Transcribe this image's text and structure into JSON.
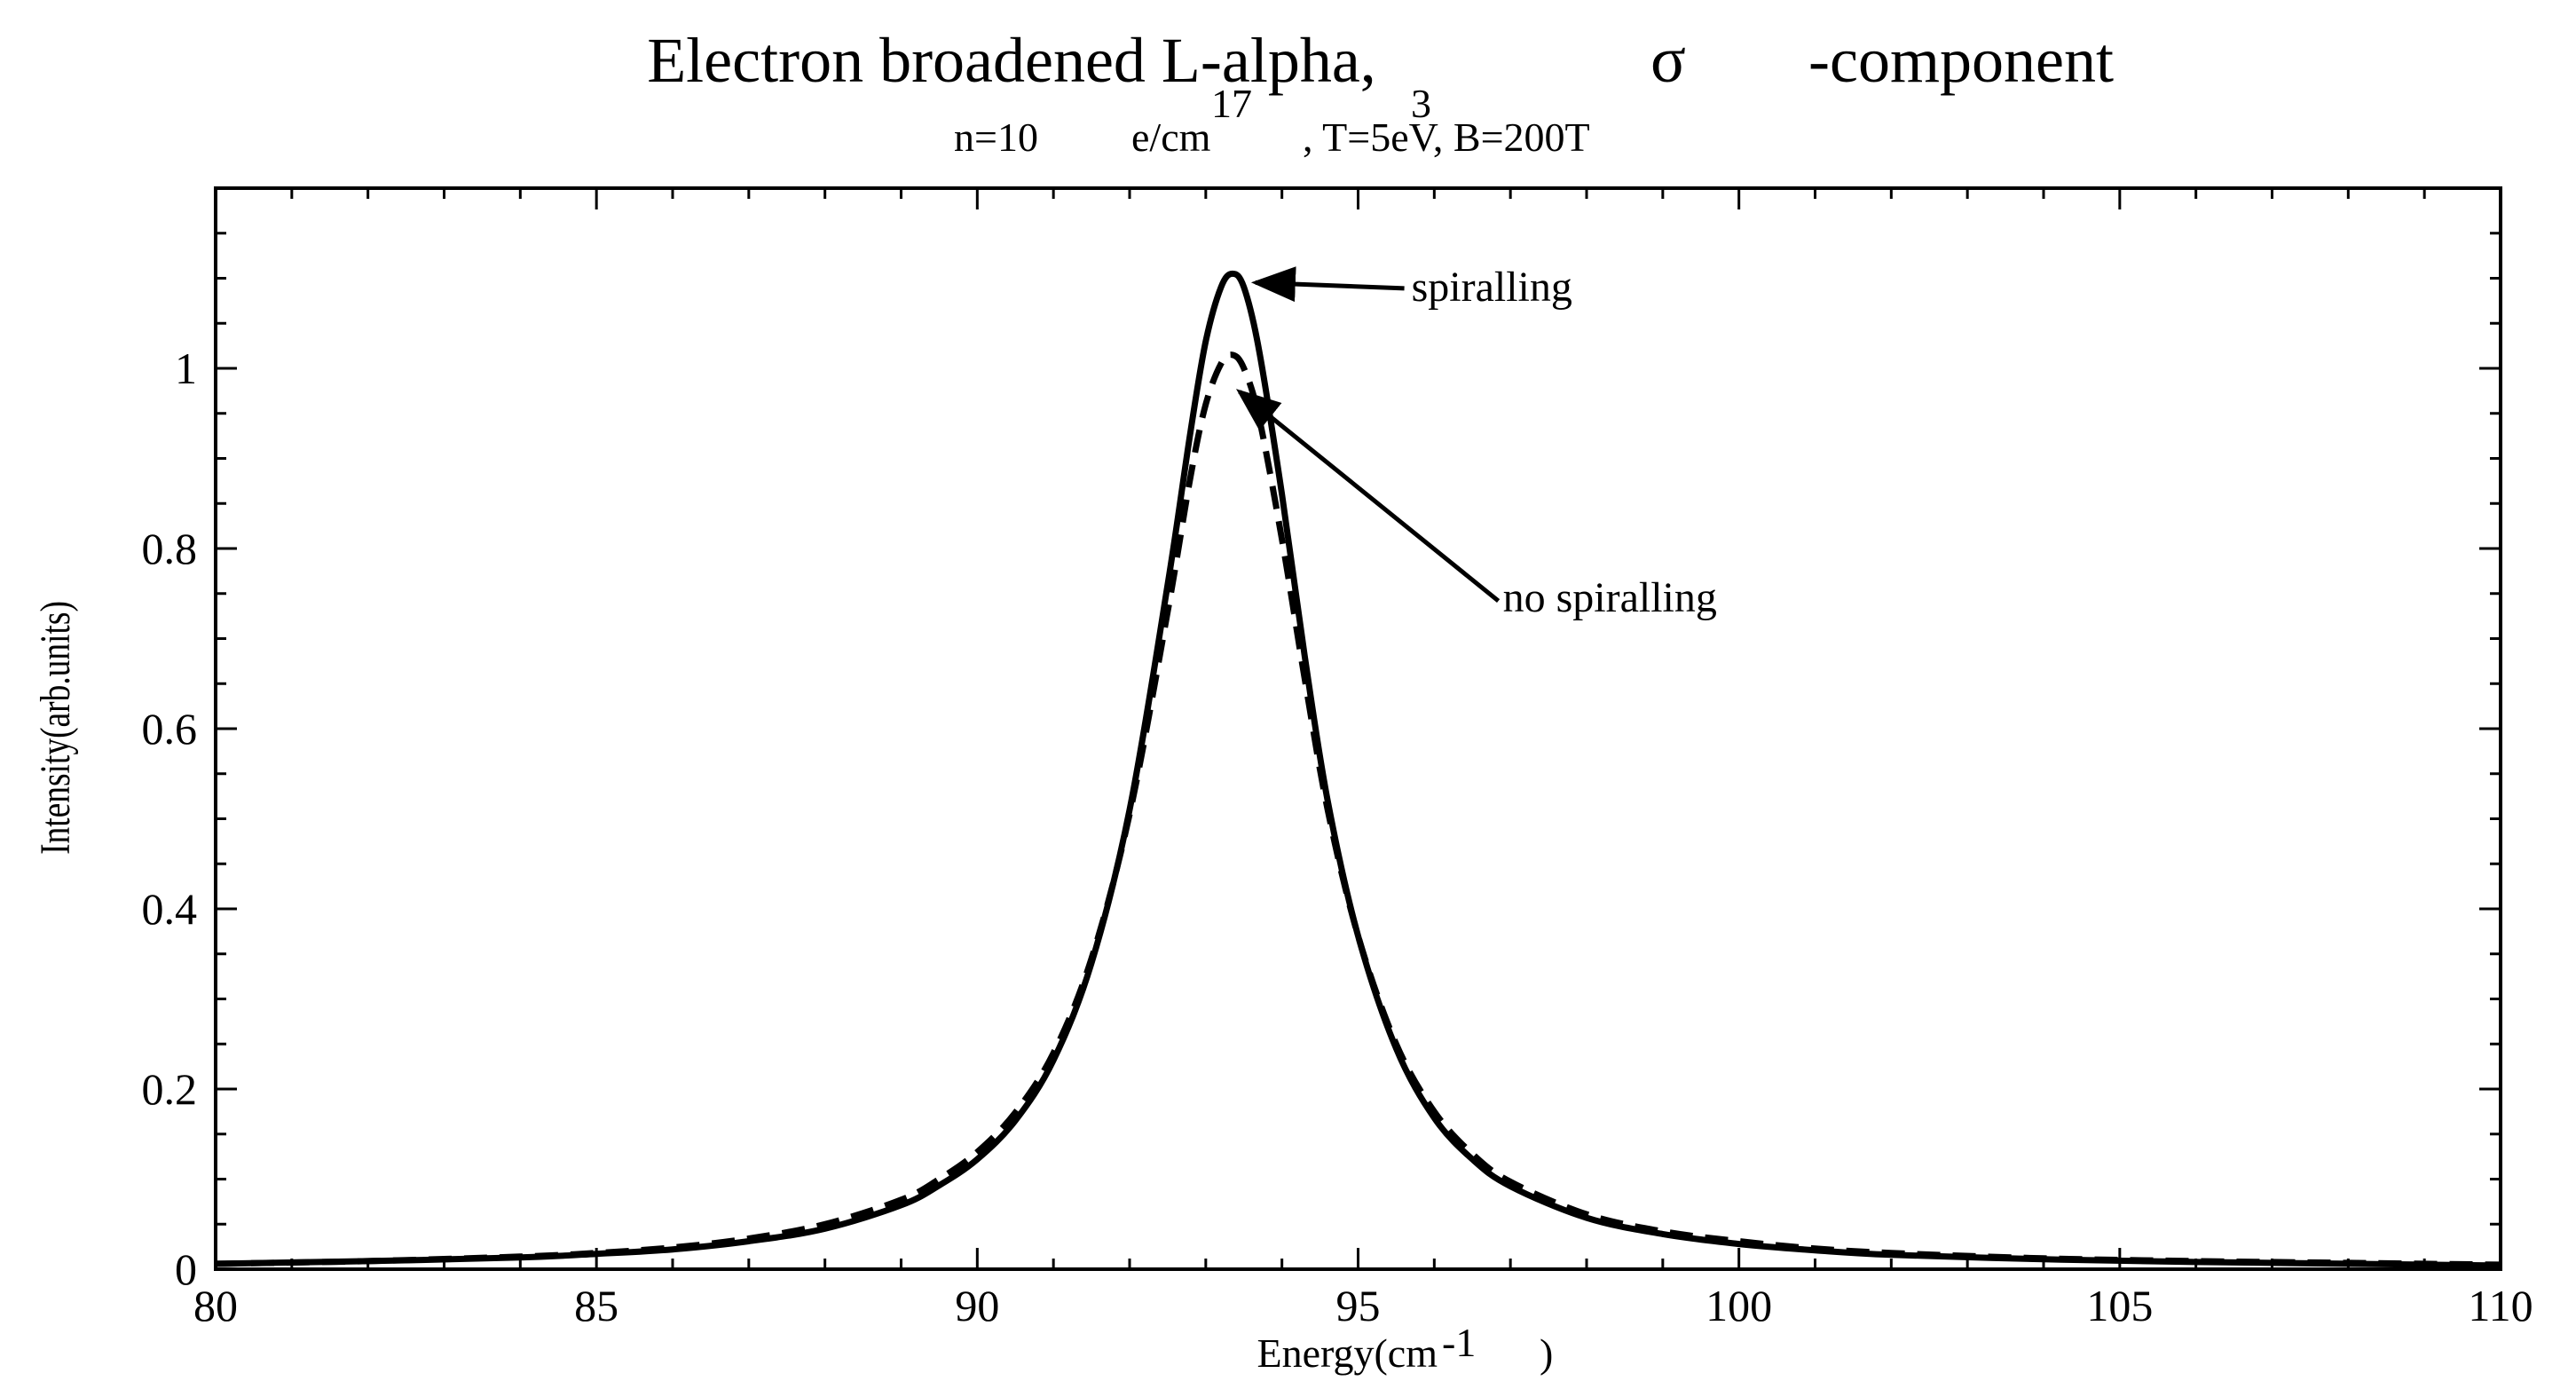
{
  "chart_data": {
    "type": "line",
    "title": "Electron broadened L-alpha,",
    "title_symbol": "σ",
    "title_suffix": "-component",
    "subtitle": {
      "prefix": "n=10",
      "exponent_n": "17",
      "unit": "e/cm",
      "exponent_unit": "3",
      "suffix": ", T=5eV, B=200T"
    },
    "xlabel": {
      "text": "Energy(cm",
      "sup": "-1",
      "close": ")"
    },
    "ylabel": "Intensity(arb.units)",
    "xlim": [
      80,
      110
    ],
    "ylim": [
      0,
      1.2
    ],
    "x_ticks": [
      80,
      85,
      90,
      95,
      100,
      105,
      110
    ],
    "x_tick_labels": [
      "80",
      "85",
      "90",
      "95",
      "100",
      "105",
      "110"
    ],
    "y_ticks": [
      0,
      0.2,
      0.4,
      0.6,
      0.8,
      1.0
    ],
    "y_tick_labels": [
      "0",
      "0.2",
      "0.4",
      "0.6",
      "0.8",
      "1"
    ],
    "x_minor_step": 1,
    "y_minor_step": 0.05,
    "series": [
      {
        "name": "spiralling",
        "style": "solid",
        "color": "#000000",
        "peak_center": 93.35,
        "points": [
          [
            80,
            0.006
          ],
          [
            82,
            0.009
          ],
          [
            84,
            0.013
          ],
          [
            85,
            0.017
          ],
          [
            86,
            0.022
          ],
          [
            87,
            0.031
          ],
          [
            88,
            0.045
          ],
          [
            89,
            0.071
          ],
          [
            89.5,
            0.093
          ],
          [
            90,
            0.122
          ],
          [
            90.5,
            0.165
          ],
          [
            91,
            0.232
          ],
          [
            91.5,
            0.34
          ],
          [
            92,
            0.51
          ],
          [
            92.5,
            0.76
          ],
          [
            92.8,
            0.93
          ],
          [
            93,
            1.03
          ],
          [
            93.2,
            1.09
          ],
          [
            93.35,
            1.105
          ],
          [
            93.5,
            1.09
          ],
          [
            93.7,
            1.02
          ],
          [
            94,
            0.86
          ],
          [
            94.3,
            0.68
          ],
          [
            94.6,
            0.52
          ],
          [
            95,
            0.37
          ],
          [
            95.5,
            0.245
          ],
          [
            96,
            0.168
          ],
          [
            96.5,
            0.122
          ],
          [
            97,
            0.092
          ],
          [
            98,
            0.057
          ],
          [
            99,
            0.039
          ],
          [
            100,
            0.028
          ],
          [
            101,
            0.021
          ],
          [
            102,
            0.016
          ],
          [
            104,
            0.011
          ],
          [
            106,
            0.008
          ],
          [
            108,
            0.006
          ],
          [
            110,
            0.004
          ]
        ]
      },
      {
        "name": "no spiralling",
        "style": "dashed",
        "color": "#000000",
        "peak_center": 93.35,
        "points": [
          [
            80,
            0.006
          ],
          [
            82,
            0.009
          ],
          [
            84,
            0.014
          ],
          [
            85,
            0.018
          ],
          [
            86,
            0.024
          ],
          [
            87,
            0.034
          ],
          [
            88,
            0.05
          ],
          [
            89,
            0.077
          ],
          [
            89.5,
            0.1
          ],
          [
            90,
            0.13
          ],
          [
            90.5,
            0.174
          ],
          [
            91,
            0.24
          ],
          [
            91.5,
            0.345
          ],
          [
            92,
            0.505
          ],
          [
            92.5,
            0.73
          ],
          [
            92.8,
            0.88
          ],
          [
            93,
            0.96
          ],
          [
            93.2,
            1.005
          ],
          [
            93.35,
            1.015
          ],
          [
            93.5,
            1.0
          ],
          [
            93.7,
            0.945
          ],
          [
            94,
            0.81
          ],
          [
            94.3,
            0.655
          ],
          [
            94.6,
            0.51
          ],
          [
            95,
            0.37
          ],
          [
            95.5,
            0.25
          ],
          [
            96,
            0.175
          ],
          [
            96.5,
            0.128
          ],
          [
            97,
            0.097
          ],
          [
            98,
            0.061
          ],
          [
            99,
            0.042
          ],
          [
            100,
            0.031
          ],
          [
            101,
            0.023
          ],
          [
            102,
            0.018
          ],
          [
            104,
            0.012
          ],
          [
            106,
            0.009
          ],
          [
            108,
            0.007
          ],
          [
            110,
            0.005
          ]
        ]
      }
    ],
    "annotations": [
      {
        "text": "spiralling",
        "target": "spiralling",
        "target_x": 93.35,
        "target_y": 1.105,
        "label_x": 95.7,
        "label_y": 1.075
      },
      {
        "text": "no spiralling",
        "target": "no spiralling",
        "target_x": 93.35,
        "target_y": 0.98,
        "label_x": 96.9,
        "label_y": 0.73
      }
    ]
  }
}
